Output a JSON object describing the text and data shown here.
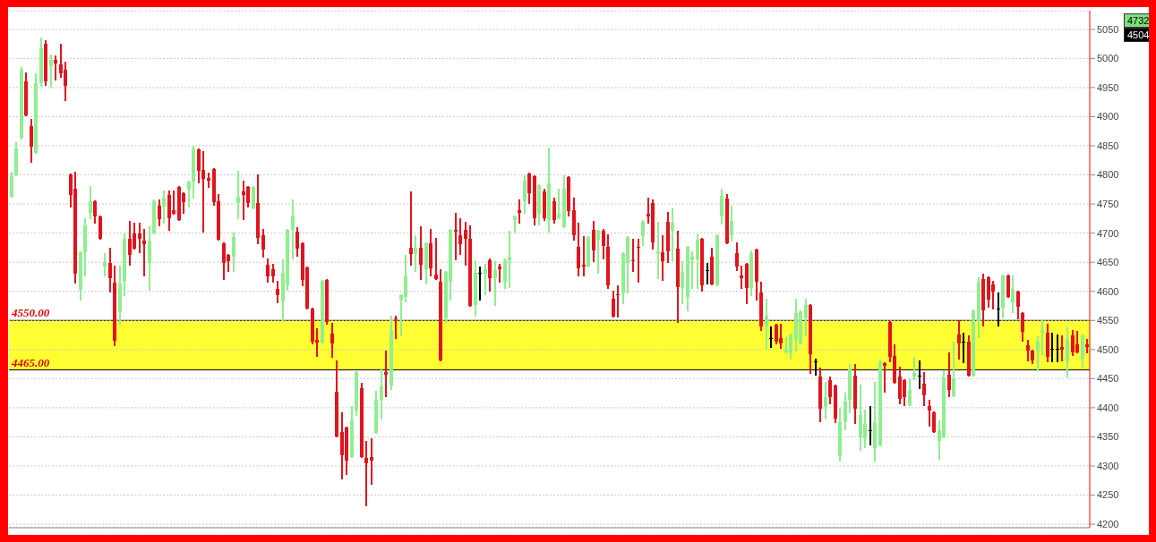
{
  "chart_data": {
    "type": "candlestick",
    "categories": [
      null,
      null,
      null,
      null,
      null,
      null,
      null,
      null,
      null,
      null,
      null,
      null,
      null,
      null,
      null,
      null,
      null,
      null,
      null,
      null,
      null,
      null,
      null,
      null,
      null,
      null,
      null,
      null,
      null,
      null,
      null,
      null,
      null,
      null,
      null,
      null,
      null,
      null,
      null,
      null,
      null,
      null,
      null,
      null,
      null,
      null,
      null,
      null,
      null,
      null,
      null,
      null,
      null,
      null,
      null,
      null,
      null,
      null,
      null,
      null,
      null,
      null,
      null,
      null,
      null,
      null,
      null,
      null,
      null,
      null,
      null,
      null,
      null,
      null,
      null,
      null,
      null,
      null,
      null,
      null,
      null,
      null,
      null,
      null,
      null,
      null,
      null,
      null,
      null,
      null,
      null,
      null,
      null,
      null,
      null,
      null,
      null,
      null,
      null,
      null,
      null,
      null,
      null,
      null,
      null,
      null,
      null,
      null,
      null,
      null,
      null,
      null,
      null,
      null,
      null,
      null,
      null,
      null,
      null,
      null,
      null,
      null,
      null,
      null,
      null,
      null,
      null,
      null,
      null,
      null,
      null,
      null,
      null,
      null,
      null,
      null,
      null,
      null,
      null,
      null,
      null,
      null,
      null,
      null,
      null,
      null,
      null,
      null,
      null,
      null,
      null,
      null,
      null,
      null,
      null,
      null,
      null,
      null,
      null,
      null,
      null,
      null,
      null,
      null,
      null,
      null,
      null,
      null,
      null,
      null,
      null,
      null,
      null,
      null,
      null,
      null,
      null,
      null,
      null,
      null,
      null,
      null,
      null,
      null,
      null,
      null,
      null,
      null,
      null,
      null,
      null,
      null,
      null,
      null,
      null,
      null,
      null,
      null,
      null,
      null,
      null,
      null,
      null,
      null,
      null,
      null,
      null,
      null,
      null,
      null,
      null,
      null,
      null,
      null,
      null,
      null,
      null,
      null,
      null
    ],
    "ohlc": [
      [
        4762,
        4804,
        4762,
        4798
      ],
      [
        4800,
        4855,
        4800,
        4845
      ],
      [
        4864,
        4983,
        4863,
        4981
      ],
      [
        4961,
        4975,
        4903,
        4903
      ],
      [
        4884,
        4894,
        4822,
        4849
      ],
      [
        4837,
        4973,
        4837,
        4957
      ],
      [
        4958,
        5034,
        4953,
        5017
      ],
      [
        5025,
        5029,
        4955,
        4960
      ],
      [
        4987,
        5005,
        4951,
        4997
      ],
      [
        4997,
        5004,
        4963,
        4991
      ],
      [
        4990,
        5023,
        4968,
        4974
      ],
      [
        4981,
        4993,
        4928,
        4953
      ],
      [
        4801,
        4801,
        4746,
        4766
      ],
      [
        4776,
        4804,
        4615,
        4630
      ],
      [
        4603,
        4667,
        4585,
        4667
      ],
      [
        4667,
        4724,
        4628,
        4713
      ],
      [
        4735,
        4779,
        4725,
        4755
      ],
      [
        4755,
        4755,
        4718,
        4729
      ],
      [
        4729,
        4729,
        4690,
        4690
      ],
      [
        4643,
        4664,
        4628,
        4648
      ],
      [
        4648,
        4673,
        4600,
        4622
      ],
      [
        4615,
        4642,
        4507,
        4515
      ],
      [
        4564,
        4642,
        4544,
        4613
      ],
      [
        4618,
        4699,
        4594,
        4691
      ],
      [
        4691,
        4719,
        4646,
        4662
      ],
      [
        4699,
        4717,
        4673,
        4673
      ],
      [
        4699,
        4717,
        4667,
        4690
      ],
      [
        4687,
        4706,
        4628,
        4681
      ],
      [
        4648,
        4710,
        4603,
        4687
      ],
      [
        4699,
        4756,
        4699,
        4755
      ],
      [
        4747,
        4756,
        4713,
        4724
      ],
      [
        4746,
        4771,
        4718,
        4761
      ],
      [
        4765,
        4771,
        4705,
        4726
      ],
      [
        4740,
        4772,
        4733,
        4733
      ],
      [
        4779,
        4779,
        4723,
        4723
      ],
      [
        4769,
        4769,
        4735,
        4753
      ],
      [
        4775,
        4788,
        4746,
        4788
      ],
      [
        4788,
        4848,
        4761,
        4845
      ],
      [
        4844,
        4844,
        4787,
        4807
      ],
      [
        4808,
        4839,
        4703,
        4793
      ],
      [
        4794,
        4803,
        4779,
        4790
      ],
      [
        4810,
        4810,
        4749,
        4753
      ],
      [
        4754,
        4766,
        4688,
        4688
      ],
      [
        4682,
        4682,
        4621,
        4648
      ],
      [
        4663,
        4663,
        4635,
        4652
      ],
      [
        4660,
        4699,
        4635,
        4694
      ],
      [
        4751,
        4805,
        4725,
        4762
      ],
      [
        4771,
        4789,
        4724,
        4766
      ],
      [
        4780,
        4780,
        4746,
        4751
      ],
      [
        4742,
        4780,
        4742,
        4780
      ],
      [
        4752,
        4799,
        4682,
        4692
      ],
      [
        4696,
        4705,
        4659,
        4672
      ],
      [
        4645,
        4655,
        4616,
        4625
      ],
      [
        4638,
        4646,
        4616,
        4626
      ],
      [
        4604,
        4616,
        4581,
        4594
      ],
      [
        4582,
        4654,
        4549,
        4632
      ],
      [
        4611,
        4706,
        4603,
        4706
      ],
      [
        4706,
        4756,
        4656,
        4728
      ],
      [
        4703,
        4708,
        4661,
        4674
      ],
      [
        4682,
        4682,
        4611,
        4619
      ],
      [
        4641,
        4641,
        4571,
        4571
      ],
      [
        4570,
        4570,
        4511,
        4513
      ],
      [
        4516,
        4535,
        4489,
        4512
      ],
      [
        4512,
        4618,
        4512,
        4618
      ],
      [
        4619,
        4619,
        4544,
        4548
      ],
      [
        4528,
        4544,
        4488,
        4511
      ],
      [
        4428,
        4480,
        4350,
        4350
      ],
      [
        4358,
        4390,
        4279,
        4319
      ],
      [
        4366,
        4366,
        4286,
        4309
      ],
      [
        4315,
        4402,
        4315,
        4378
      ],
      [
        4396,
        4462,
        4388,
        4462
      ],
      [
        4434,
        4442,
        4315,
        4315
      ],
      [
        4314,
        4341,
        4232,
        4305
      ],
      [
        4315,
        4346,
        4269,
        4309
      ],
      [
        4357,
        4427,
        4357,
        4414
      ],
      [
        4414,
        4466,
        4381,
        4437
      ],
      [
        4461,
        4496,
        4420,
        4456
      ],
      [
        4439,
        4557,
        4432,
        4534
      ],
      [
        4554,
        4557,
        4519,
        4552
      ],
      [
        4585,
        4594,
        4525,
        4594
      ],
      [
        4591,
        4661,
        4582,
        4625
      ],
      [
        4675,
        4770,
        4646,
        4664
      ],
      [
        4664,
        4695,
        4635,
        4675
      ],
      [
        4675,
        4710,
        4621,
        4646
      ],
      [
        4638,
        4683,
        4613,
        4683
      ],
      [
        4683,
        4705,
        4628,
        4639
      ],
      [
        4629,
        4691,
        4621,
        4621
      ],
      [
        4617,
        4636,
        4482,
        4482
      ],
      [
        4554,
        4634,
        4547,
        4634
      ],
      [
        4617,
        4705,
        4586,
        4705
      ],
      [
        4705,
        4733,
        4655,
        4703
      ],
      [
        4697,
        4724,
        4664,
        4681
      ],
      [
        4705,
        4718,
        4646,
        4691
      ],
      [
        4690,
        4711,
        4575,
        4575
      ],
      [
        4576,
        4652,
        4558,
        4632
      ],
      [
        4632,
        4641,
        4585,
        4632
      ],
      [
        4631,
        4645,
        4595,
        4638
      ],
      [
        4654,
        4655,
        4601,
        4623
      ],
      [
        4623,
        4651,
        4576,
        4637
      ],
      [
        4643,
        4645,
        4616,
        4638
      ],
      [
        4616,
        4655,
        4606,
        4654
      ],
      [
        4654,
        4703,
        4607,
        4660
      ],
      [
        4723,
        4729,
        4702,
        4729
      ],
      [
        4739,
        4757,
        4718,
        4735
      ],
      [
        4754,
        4798,
        4735,
        4790
      ],
      [
        4803,
        4803,
        4752,
        4769
      ],
      [
        4798,
        4798,
        4715,
        4726
      ],
      [
        4734,
        4783,
        4715,
        4783
      ],
      [
        4771,
        4774,
        4723,
        4725
      ],
      [
        4723,
        4846,
        4702,
        4785
      ],
      [
        4754,
        4759,
        4718,
        4723
      ],
      [
        4725,
        4774,
        4725,
        4734
      ],
      [
        4710,
        4798,
        4710,
        4777
      ],
      [
        4797,
        4797,
        4730,
        4738
      ],
      [
        4739,
        4759,
        4688,
        4697
      ],
      [
        4677,
        4716,
        4627,
        4640
      ],
      [
        4646,
        4693,
        4627,
        4643
      ],
      [
        4642,
        4693,
        4642,
        4693
      ],
      [
        4706,
        4719,
        4652,
        4670
      ],
      [
        4689,
        4704,
        4632,
        4704
      ],
      [
        4704,
        4706,
        4656,
        4678
      ],
      [
        4677,
        4697,
        4606,
        4610
      ],
      [
        4588,
        4600,
        4557,
        4557
      ],
      [
        4595,
        4609,
        4557,
        4593
      ],
      [
        4596,
        4666,
        4580,
        4666
      ],
      [
        4648,
        4693,
        4598,
        4693
      ],
      [
        4654,
        4688,
        4635,
        4653
      ],
      [
        4677,
        4688,
        4617,
        4675
      ],
      [
        4695,
        4721,
        4679,
        4720
      ],
      [
        4734,
        4759,
        4718,
        4728
      ],
      [
        4751,
        4756,
        4674,
        4684
      ],
      [
        4665,
        4718,
        4622,
        4668
      ],
      [
        4667,
        4695,
        4619,
        4652
      ],
      [
        4719,
        4735,
        4650,
        4668
      ],
      [
        4704,
        4741,
        4654,
        4718
      ],
      [
        4673,
        4703,
        4548,
        4608
      ],
      [
        4606,
        4650,
        4579,
        4634
      ],
      [
        4590,
        4676,
        4567,
        4676
      ],
      [
        4654,
        4667,
        4606,
        4659
      ],
      [
        4655,
        4697,
        4606,
        4688
      ],
      [
        4691,
        4691,
        4601,
        4610
      ],
      [
        4636,
        4647,
        4613,
        4636
      ],
      [
        4659,
        4673,
        4612,
        4612
      ],
      [
        4610,
        4696,
        4610,
        4696
      ],
      [
        4728,
        4774,
        4717,
        4764
      ],
      [
        4759,
        4766,
        4683,
        4683
      ],
      [
        4697,
        4746,
        4687,
        4721
      ],
      [
        4666,
        4682,
        4637,
        4642
      ],
      [
        4628,
        4642,
        4605,
        4622
      ],
      [
        4647,
        4647,
        4579,
        4606
      ],
      [
        4606,
        4668,
        4593,
        4666
      ],
      [
        4672,
        4672,
        4585,
        4616
      ],
      [
        4598,
        4615,
        4534,
        4539
      ],
      [
        4539,
        4586,
        4501,
        4558
      ],
      [
        4520,
        4538,
        4504,
        4520
      ],
      [
        4543,
        4543,
        4511,
        4513
      ],
      [
        4519,
        4543,
        4503,
        4511
      ],
      [
        4495,
        4519,
        4495,
        4502
      ],
      [
        4493,
        4526,
        4484,
        4526
      ],
      [
        4518,
        4586,
        4498,
        4562
      ],
      [
        4510,
        4566,
        4510,
        4566
      ],
      [
        4554,
        4586,
        4524,
        4577
      ],
      [
        4577,
        4577,
        4460,
        4492
      ],
      [
        4479,
        4483,
        4456,
        4479
      ],
      [
        4453,
        4467,
        4377,
        4399
      ],
      [
        4401,
        4443,
        4381,
        4418
      ],
      [
        4448,
        4452,
        4407,
        4418
      ],
      [
        4438,
        4438,
        4375,
        4382
      ],
      [
        4317,
        4399,
        4309,
        4376
      ],
      [
        4376,
        4424,
        4363,
        4410
      ],
      [
        4413,
        4474,
        4392,
        4466
      ],
      [
        4455,
        4474,
        4373,
        4399
      ],
      [
        4349,
        4438,
        4327,
        4387
      ],
      [
        4347,
        4396,
        4332,
        4372
      ],
      [
        4361,
        4401,
        4337,
        4361
      ],
      [
        4330,
        4443,
        4309,
        4375
      ],
      [
        4335,
        4480,
        4335,
        4480
      ],
      [
        4477,
        4477,
        4428,
        4472
      ],
      [
        4547,
        4547,
        4480,
        4488
      ],
      [
        4489,
        4508,
        4443,
        4443
      ],
      [
        4454,
        4469,
        4408,
        4416
      ],
      [
        4448,
        4448,
        4405,
        4418
      ],
      [
        4405,
        4447,
        4405,
        4431
      ],
      [
        4454,
        4486,
        4449,
        4460
      ],
      [
        4455,
        4480,
        4433,
        4455
      ],
      [
        4441,
        4460,
        4405,
        4421
      ],
      [
        4403,
        4412,
        4369,
        4396
      ],
      [
        4392,
        4392,
        4359,
        4359
      ],
      [
        4343,
        4377,
        4313,
        4361
      ],
      [
        4349,
        4463,
        4349,
        4452
      ],
      [
        4456,
        4494,
        4420,
        4430
      ],
      [
        4420,
        4512,
        4420,
        4451
      ],
      [
        4526,
        4549,
        4485,
        4511
      ],
      [
        4513,
        4527,
        4478,
        4513
      ],
      [
        4513,
        4523,
        4455,
        4455
      ],
      [
        4455,
        4568,
        4455,
        4568
      ],
      [
        4551,
        4622,
        4522,
        4616
      ],
      [
        4621,
        4629,
        4541,
        4567
      ],
      [
        4624,
        4624,
        4573,
        4586
      ],
      [
        4612,
        4616,
        4571,
        4600
      ],
      [
        4571,
        4597,
        4541,
        4571
      ],
      [
        4572,
        4628,
        4555,
        4628
      ],
      [
        4628,
        4628,
        4591,
        4591
      ],
      [
        4581,
        4626,
        4564,
        4604
      ],
      [
        4599,
        4599,
        4554,
        4574
      ],
      [
        4562,
        4562,
        4515,
        4531
      ],
      [
        4507,
        4515,
        4481,
        4498
      ],
      [
        4498,
        4498,
        4476,
        4482
      ],
      [
        4498,
        4522,
        4465,
        4513
      ],
      [
        4529,
        4550,
        4492,
        4533
      ],
      [
        4529,
        4543,
        4480,
        4488
      ],
      [
        4501,
        4527,
        4479,
        4501
      ],
      [
        4501,
        4524,
        4480,
        4501
      ],
      [
        4505,
        4523,
        4481,
        4500
      ],
      [
        4480,
        4537,
        4453,
        4518
      ],
      [
        4525,
        4532,
        4490,
        4495
      ],
      [
        4509,
        4530,
        4495,
        4495
      ],
      [
        4484,
        4525,
        4470,
        4525
      ],
      [
        4509,
        4516,
        4495,
        4504
      ]
    ],
    "colors": [
      "#90ee90",
      "#90ee90",
      "#90ee90",
      "#e0141e",
      "#e0141e",
      "#90ee90",
      "#90ee90",
      "#e0141e",
      "#90ee90",
      "#e0141e",
      "#e0141e",
      "#e0141e",
      "#e0141e",
      "#e0141e",
      "#90ee90",
      "#90ee90",
      "#90ee90",
      "#e0141e",
      "#e0141e",
      "#90ee90",
      "#e0141e",
      "#e0141e",
      "#90ee90",
      "#90ee90",
      "#e0141e",
      "#e0141e",
      "#e0141e",
      "#e0141e",
      "#90ee90",
      "#90ee90",
      "#e0141e",
      "#90ee90",
      "#e0141e",
      "#e0141e",
      "#e0141e",
      "#e0141e",
      "#90ee90",
      "#90ee90",
      "#e0141e",
      "#e0141e",
      "#e0141e",
      "#e0141e",
      "#e0141e",
      "#e0141e",
      "#e0141e",
      "#90ee90",
      "#90ee90",
      "#e0141e",
      "#e0141e",
      "#90ee90",
      "#e0141e",
      "#e0141e",
      "#e0141e",
      "#e0141e",
      "#e0141e",
      "#90ee90",
      "#90ee90",
      "#90ee90",
      "#e0141e",
      "#e0141e",
      "#e0141e",
      "#e0141e",
      "#e0141e",
      "#90ee90",
      "#e0141e",
      "#e0141e",
      "#e0141e",
      "#e0141e",
      "#e0141e",
      "#90ee90",
      "#90ee90",
      "#e0141e",
      "#e0141e",
      "#e0141e",
      "#90ee90",
      "#90ee90",
      "#e0141e",
      "#90ee90",
      "#e0141e",
      "#90ee90",
      "#90ee90",
      "#e0141e",
      "#90ee90",
      "#e0141e",
      "#90ee90",
      "#e0141e",
      "#e0141e",
      "#e0141e",
      "#90ee90",
      "#90ee90",
      "#e0141e",
      "#e0141e",
      "#e0141e",
      "#e0141e",
      "#90ee90",
      "#000000",
      "#90ee90",
      "#e0141e",
      "#90ee90",
      "#e0141e",
      "#90ee90",
      "#90ee90",
      "#90ee90",
      "#e0141e",
      "#90ee90",
      "#e0141e",
      "#e0141e",
      "#90ee90",
      "#e0141e",
      "#90ee90",
      "#e0141e",
      "#90ee90",
      "#90ee90",
      "#e0141e",
      "#e0141e",
      "#e0141e",
      "#e0141e",
      "#90ee90",
      "#e0141e",
      "#90ee90",
      "#e0141e",
      "#e0141e",
      "#e0141e",
      "#e0141e",
      "#90ee90",
      "#90ee90",
      "#e0141e",
      "#e0141e",
      "#90ee90",
      "#e0141e",
      "#e0141e",
      "#90ee90",
      "#e0141e",
      "#e0141e",
      "#90ee90",
      "#e0141e",
      "#90ee90",
      "#90ee90",
      "#90ee90",
      "#90ee90",
      "#e0141e",
      "#000000",
      "#e0141e",
      "#90ee90",
      "#90ee90",
      "#e0141e",
      "#90ee90",
      "#e0141e",
      "#e0141e",
      "#e0141e",
      "#90ee90",
      "#e0141e",
      "#e0141e",
      "#90ee90",
      "#000000",
      "#e0141e",
      "#e0141e",
      "#90ee90",
      "#90ee90",
      "#90ee90",
      "#90ee90",
      "#90ee90",
      "#e0141e",
      "#000000",
      "#e0141e",
      "#90ee90",
      "#e0141e",
      "#e0141e",
      "#90ee90",
      "#90ee90",
      "#90ee90",
      "#e0141e",
      "#90ee90",
      "#90ee90",
      "#000000",
      "#90ee90",
      "#90ee90",
      "#e0141e",
      "#e0141e",
      "#e0141e",
      "#e0141e",
      "#e0141e",
      "#90ee90",
      "#90ee90",
      "#000000",
      "#e0141e",
      "#e0141e",
      "#e0141e",
      "#90ee90",
      "#90ee90",
      "#e0141e",
      "#90ee90",
      "#e0141e",
      "#000000",
      "#e0141e",
      "#90ee90",
      "#90ee90",
      "#e0141e",
      "#e0141e",
      "#e0141e",
      "#000000",
      "#90ee90",
      "#e0141e",
      "#90ee90",
      "#e0141e",
      "#e0141e",
      "#e0141e",
      "#e0141e",
      "#90ee90",
      "#90ee90",
      "#e0141e",
      "#000000",
      "#000000",
      "#e0141e",
      "#90ee90",
      "#e0141e",
      "#e0141e",
      "#90ee90",
      "#e0141e"
    ],
    "ylim": [
      4194,
      5082
    ],
    "yticks": [
      4200,
      4250,
      4300,
      4350,
      4400,
      4450,
      4500,
      4550,
      4600,
      4650,
      4700,
      4750,
      4800,
      4850,
      4900,
      4950,
      5000,
      5050
    ],
    "ref_lines": [
      {
        "axis": "y",
        "value": 4550,
        "label": "4550.00",
        "color": "#000000"
      },
      {
        "axis": "y",
        "value": 4465,
        "label": "4465.00",
        "color": "#000000"
      }
    ],
    "bands": [
      {
        "axis": "y",
        "from": 4465,
        "to": 4550,
        "color": "#ffff33"
      }
    ],
    "annotations": [
      "4732",
      "4504"
    ],
    "grid": "y"
  }
}
